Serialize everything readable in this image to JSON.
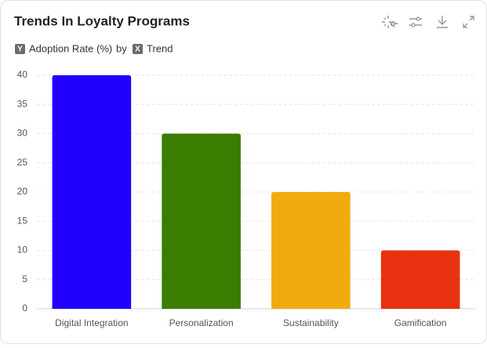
{
  "chart_data": {
    "type": "bar",
    "title": "Trends In Loyalty Programs",
    "y_badge": "Y",
    "y_label": "Adoption Rate (%)",
    "connector": "by",
    "x_badge": "X",
    "x_label": "Trend",
    "categories": [
      "Digital Integration",
      "Personalization",
      "Sustainability",
      "Gamification"
    ],
    "values": [
      40,
      30,
      20,
      10
    ],
    "colors": [
      "#2200ff",
      "#3a7d00",
      "#f0ab0e",
      "#e83210"
    ],
    "ylim": [
      0,
      40
    ],
    "yticks": [
      0,
      5,
      10,
      15,
      20,
      25,
      30,
      35,
      40
    ],
    "grid": true
  }
}
